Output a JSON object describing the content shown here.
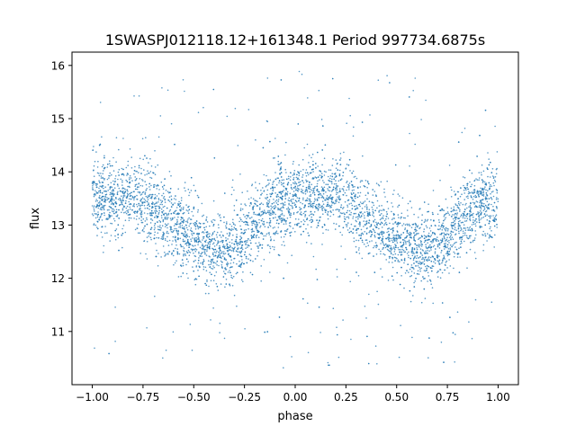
{
  "chart_data": {
    "type": "scatter",
    "title": "1SWASPJ012118.12+161348.1 Period 997734.6875s",
    "xlabel": "phase",
    "ylabel": "flux",
    "xlim": [
      -1.1,
      1.1
    ],
    "ylim": [
      10.0,
      16.25
    ],
    "xticks": [
      -1.0,
      -0.75,
      -0.5,
      -0.25,
      0.0,
      0.25,
      0.5,
      0.75,
      1.0
    ],
    "xtick_labels": [
      "−1.00",
      "−0.75",
      "−0.50",
      "−0.25",
      "0.00",
      "0.25",
      "0.50",
      "0.75",
      "1.00"
    ],
    "yticks": [
      11,
      12,
      13,
      14,
      15,
      16
    ],
    "ytick_labels": [
      "11",
      "12",
      "13",
      "14",
      "15",
      "16"
    ],
    "grid": false,
    "series": [
      {
        "name": "flux",
        "color": "#1f77b4",
        "binned_phase": [
          -1.0,
          -0.9,
          -0.8,
          -0.7,
          -0.6,
          -0.5,
          -0.4,
          -0.3,
          -0.2,
          -0.1,
          0.0,
          0.1,
          0.2,
          0.3,
          0.4,
          0.5,
          0.6,
          0.7,
          0.8,
          0.9,
          1.0
        ],
        "binned_mean_flux": [
          13.5,
          13.5,
          13.6,
          13.3,
          13.0,
          12.7,
          12.5,
          12.5,
          13.0,
          13.4,
          13.5,
          13.5,
          13.6,
          13.3,
          13.0,
          12.7,
          12.5,
          12.6,
          13.0,
          13.4,
          13.4
        ],
        "typical_scatter": 0.35,
        "outlier_range": [
          10.3,
          15.9
        ]
      }
    ]
  }
}
